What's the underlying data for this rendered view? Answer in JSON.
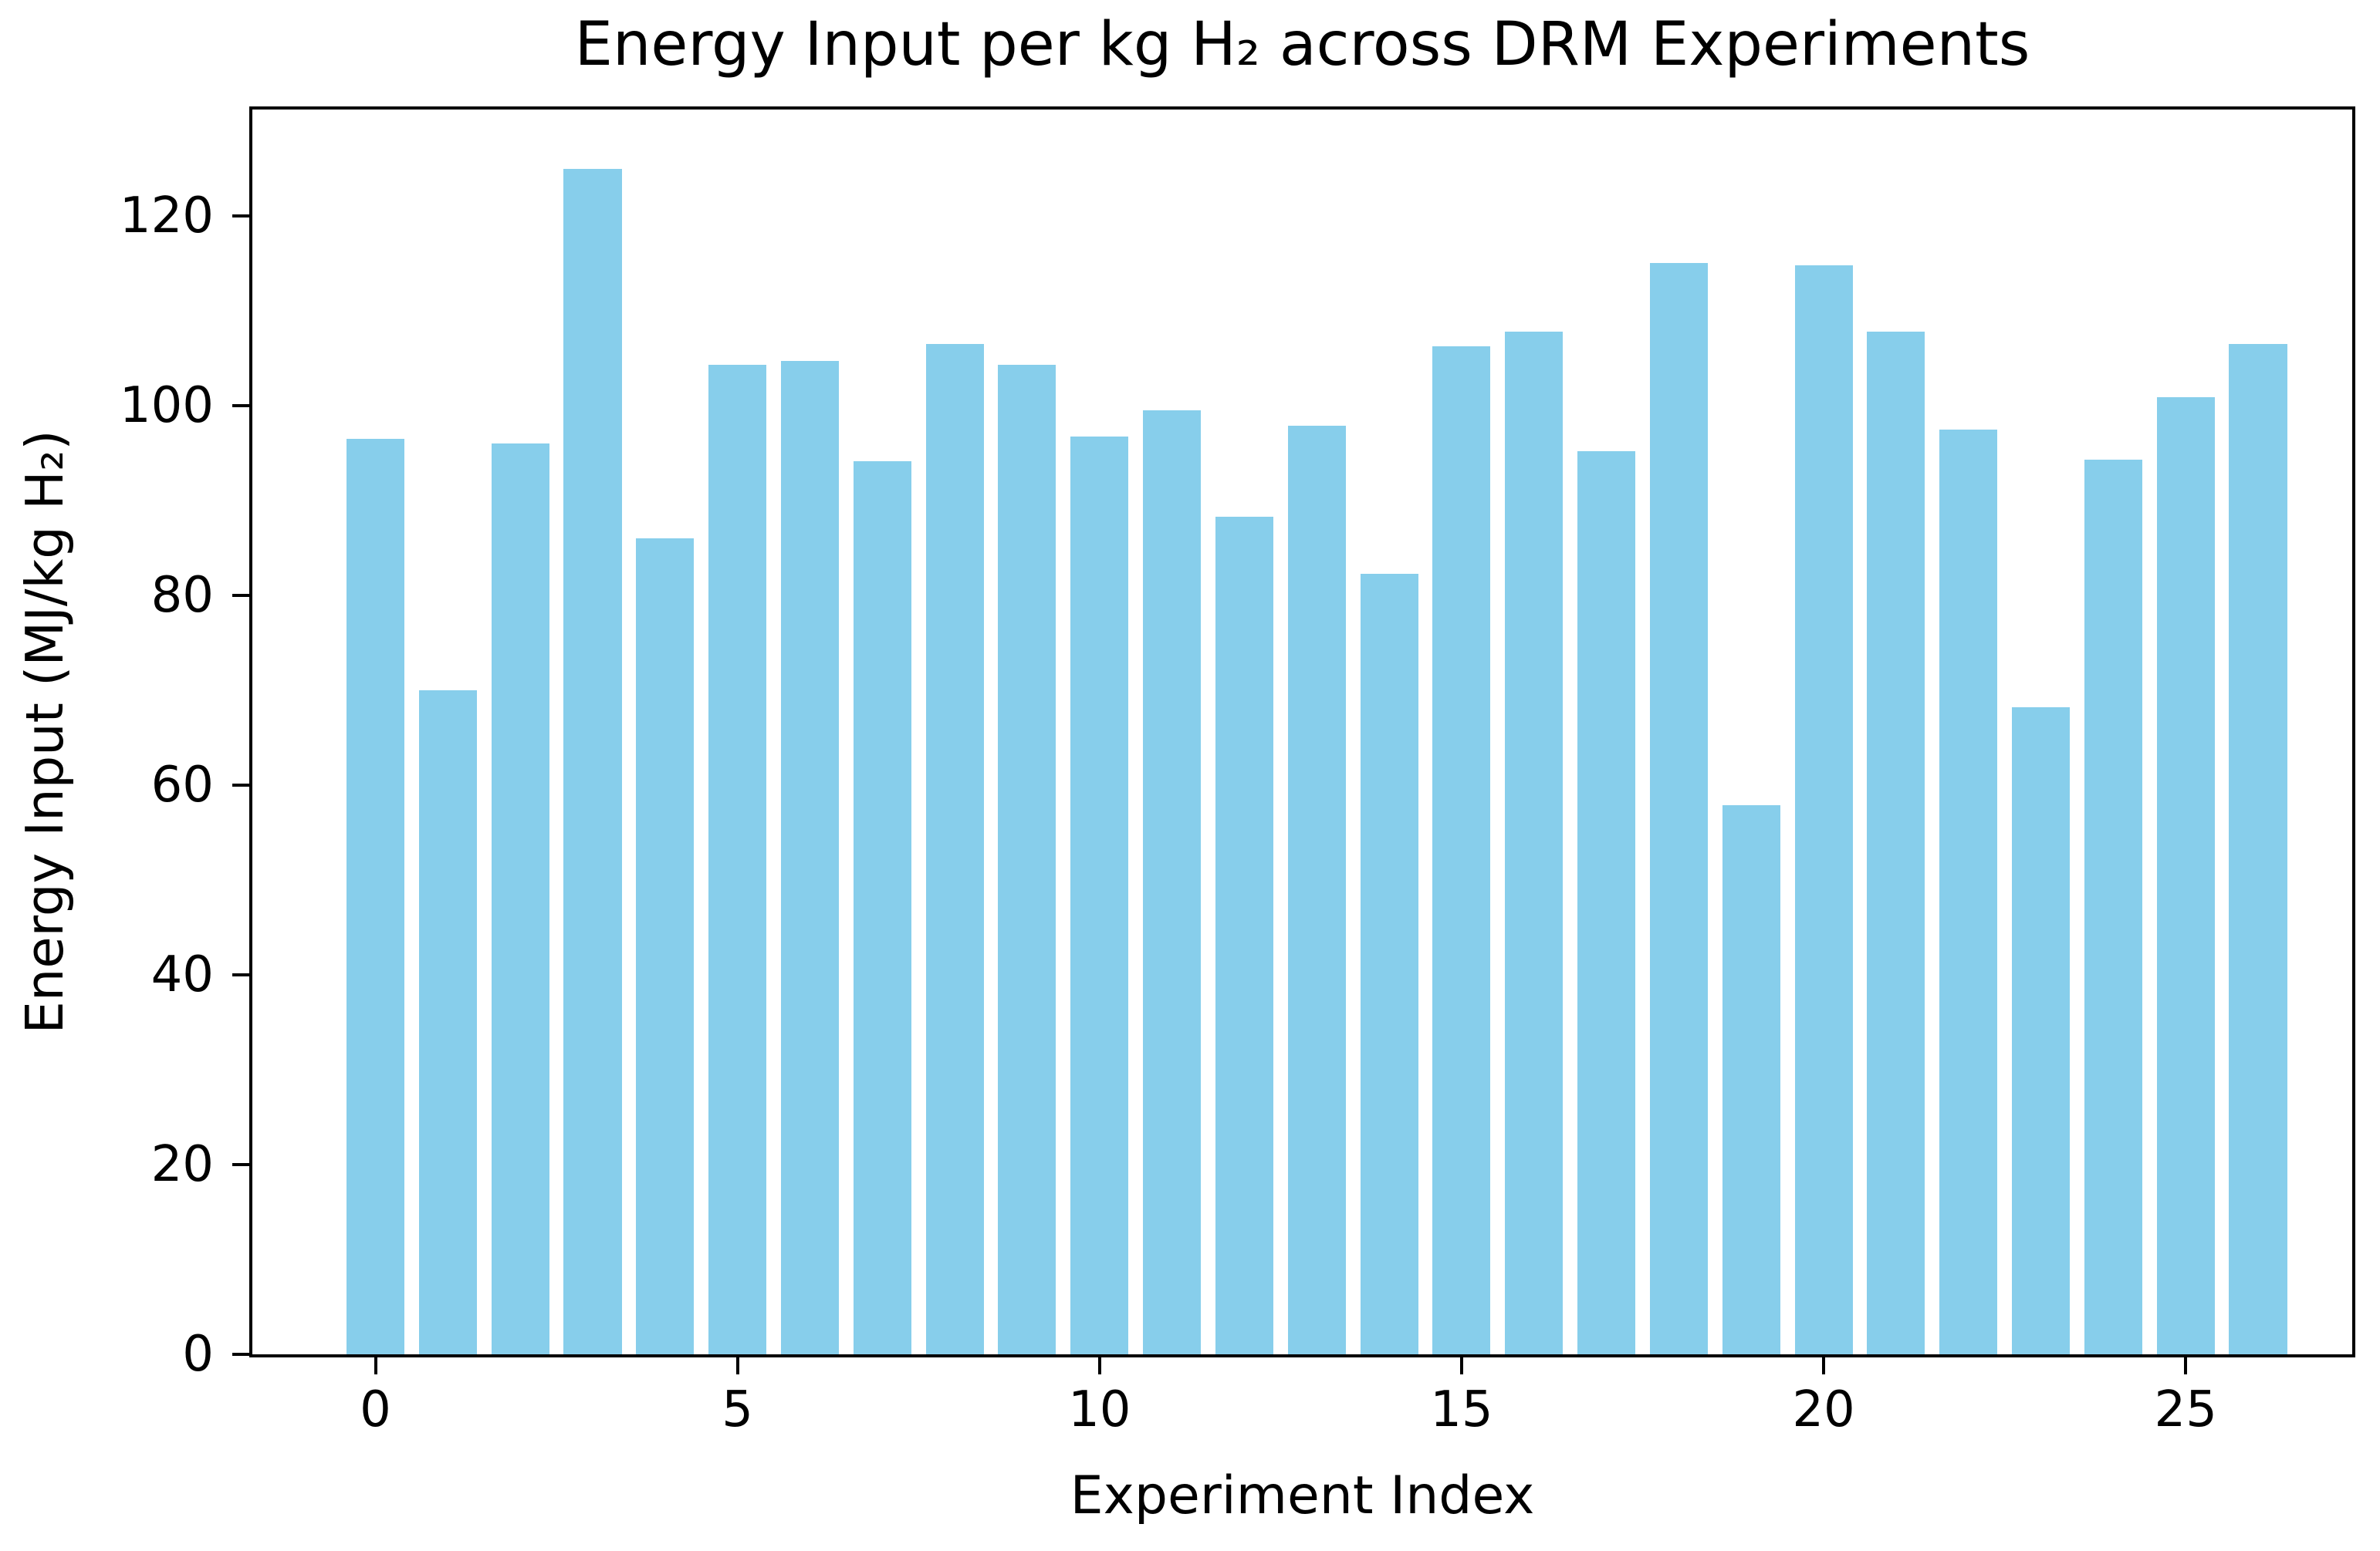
{
  "chart_data": {
    "type": "bar",
    "title": "Energy Input per kg H₂ across DRM Experiments",
    "xlabel": "Experiment Index",
    "ylabel": "Energy Input (MJ/kg H₂)",
    "categories": [
      0,
      1,
      2,
      3,
      4,
      5,
      6,
      7,
      8,
      9,
      10,
      11,
      12,
      13,
      14,
      15,
      16,
      17,
      18,
      19,
      20,
      21,
      22,
      23,
      24,
      25,
      26
    ],
    "values": [
      96.5,
      70.0,
      96.0,
      125.0,
      86.0,
      104.3,
      104.7,
      94.2,
      106.5,
      104.3,
      96.8,
      99.5,
      88.3,
      97.9,
      82.3,
      106.3,
      107.8,
      95.2,
      115.1,
      57.9,
      114.8,
      107.8,
      97.5,
      68.2,
      94.3,
      100.9,
      106.5
    ],
    "xticks": [
      0,
      5,
      10,
      15,
      20,
      25
    ],
    "yticks": [
      0,
      20,
      40,
      60,
      80,
      100,
      120
    ],
    "xlim": [
      -1.7,
      27.3
    ],
    "ylim": [
      0,
      131.25
    ],
    "bar_width": 0.8,
    "bar_color": "#87CEEB",
    "axis_color": "#000000",
    "text_color": "#000000",
    "grid": false
  }
}
